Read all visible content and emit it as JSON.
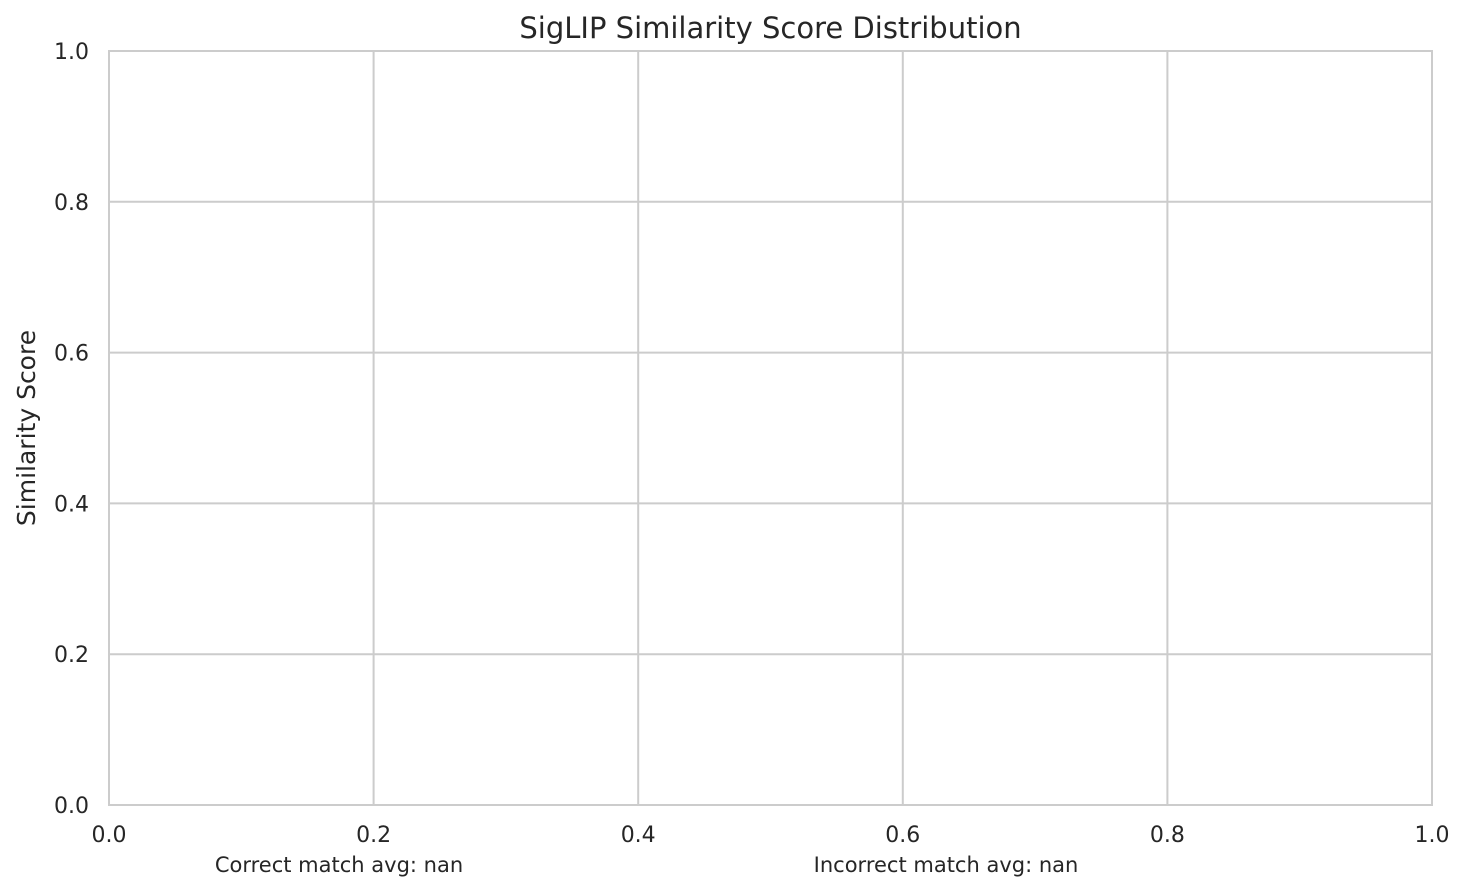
{
  "chart_data": {
    "type": "scatter",
    "title": "SigLIP Similarity Score Distribution",
    "xlabel": "",
    "ylabel": "Similarity Score",
    "xlim": [
      0.0,
      1.0
    ],
    "ylim": [
      0.0,
      1.0
    ],
    "x_ticks": [
      "0.0",
      "0.2",
      "0.4",
      "0.6",
      "0.8",
      "1.0"
    ],
    "y_ticks": [
      "0.0",
      "0.2",
      "0.4",
      "0.6",
      "0.8",
      "1.0"
    ],
    "grid": true,
    "series": [],
    "annotations": [
      "Correct match avg: nan",
      "Incorrect match avg: nan"
    ],
    "colors": {
      "background": "#ffffff",
      "grid": "#cccccc",
      "spine": "#cccccc",
      "text": "#262626"
    }
  }
}
